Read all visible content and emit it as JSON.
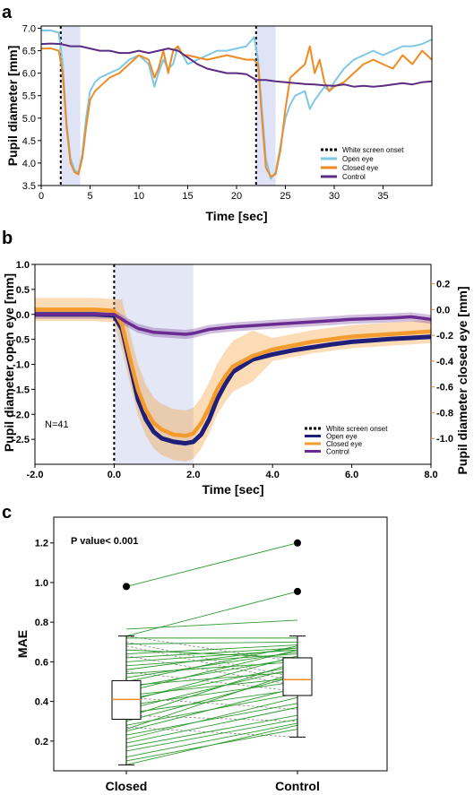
{
  "chart_data": [
    {
      "panel": "a",
      "type": "line",
      "xlabel": "Time [sec]",
      "ylabel": "Pupil diameter [mm]",
      "xlim": [
        0,
        40
      ],
      "ylim": [
        3.5,
        7.05
      ],
      "xticks": [
        0,
        5,
        10,
        15,
        20,
        25,
        30,
        35
      ],
      "yticks": [
        3.5,
        4.0,
        4.5,
        5.0,
        5.5,
        6.0,
        6.5,
        7.0
      ],
      "shaded_spans": [
        [
          2,
          4
        ],
        [
          22,
          24
        ]
      ],
      "vlines": [
        2,
        22
      ],
      "legend": [
        "White screen onset",
        "Open eye",
        "Closed eye",
        "Control"
      ],
      "legend_position": "bottom-right",
      "series": [
        {
          "name": "Open eye",
          "color": "#7ec8e3",
          "x": [
            0,
            1,
            1.8,
            2.2,
            2.6,
            3.0,
            3.4,
            3.8,
            4.2,
            4.6,
            5.0,
            5.5,
            6,
            7,
            8,
            9,
            10,
            11,
            11.6,
            12,
            12.5,
            13,
            13.5,
            14,
            15,
            16,
            17,
            18,
            19,
            20,
            21,
            21.8,
            22.2,
            22.6,
            23,
            23.5,
            24,
            24.5,
            25,
            25.5,
            26,
            27,
            27.5,
            28,
            29,
            29.5,
            30,
            31,
            32,
            33,
            34,
            35,
            36,
            37,
            38,
            39,
            40
          ],
          "y": [
            6.95,
            6.95,
            6.9,
            6.2,
            4.9,
            4.1,
            3.85,
            3.78,
            4.2,
            5.0,
            5.6,
            5.8,
            5.9,
            6.0,
            6.1,
            6.3,
            6.4,
            6.2,
            5.7,
            6.0,
            6.3,
            6.1,
            6.2,
            6.6,
            6.2,
            6.3,
            6.4,
            6.5,
            6.5,
            6.55,
            6.6,
            6.8,
            6.3,
            5.2,
            4.1,
            3.65,
            3.8,
            4.4,
            5.0,
            5.3,
            5.5,
            5.6,
            5.2,
            5.4,
            5.7,
            5.6,
            5.8,
            6.1,
            6.3,
            6.4,
            6.5,
            6.4,
            6.5,
            6.6,
            6.6,
            6.65,
            6.75
          ]
        },
        {
          "name": "Closed eye",
          "color": "#f08a24",
          "x": [
            0,
            1,
            1.8,
            2.2,
            2.6,
            3.0,
            3.4,
            3.8,
            4.2,
            4.6,
            5.0,
            5.5,
            6,
            7,
            8,
            9,
            10,
            11,
            11.6,
            12,
            12.5,
            13,
            13.5,
            14,
            14.5,
            15,
            16,
            17,
            18,
            19,
            20,
            21,
            21.8,
            22.2,
            22.6,
            23,
            23.5,
            24,
            24.5,
            25,
            25.5,
            26,
            27,
            27.5,
            28,
            28.5,
            29,
            29.5,
            30,
            31,
            32,
            33,
            34,
            35,
            36,
            37,
            38,
            39,
            40
          ],
          "y": [
            6.55,
            6.55,
            6.5,
            6.0,
            4.8,
            4.0,
            3.8,
            3.75,
            4.1,
            4.8,
            5.4,
            5.6,
            5.7,
            5.9,
            6.0,
            6.2,
            6.4,
            6.3,
            5.9,
            6.1,
            6.5,
            6.0,
            6.5,
            6.6,
            6.4,
            6.4,
            6.35,
            6.3,
            6.35,
            6.4,
            6.35,
            6.3,
            6.3,
            6.2,
            5.0,
            3.9,
            3.7,
            3.75,
            4.3,
            5.2,
            5.9,
            6.0,
            6.2,
            6.6,
            6.0,
            6.3,
            5.8,
            5.6,
            5.7,
            5.8,
            6.0,
            6.2,
            6.3,
            6.2,
            6.1,
            6.4,
            6.2,
            6.5,
            6.3
          ]
        },
        {
          "name": "Control",
          "color": "#5b2c83",
          "x": [
            0,
            1,
            2,
            3,
            4,
            5,
            6,
            7,
            8,
            9,
            10,
            11,
            12,
            13,
            14,
            15,
            16,
            17,
            18,
            19,
            20,
            21,
            22,
            23,
            24,
            25,
            26,
            27,
            28,
            29,
            30,
            31,
            32,
            33,
            34,
            35,
            36,
            37,
            38,
            39,
            40
          ],
          "y": [
            6.65,
            6.66,
            6.65,
            6.6,
            6.6,
            6.55,
            6.5,
            6.5,
            6.45,
            6.45,
            6.5,
            6.45,
            6.5,
            6.55,
            6.5,
            6.35,
            6.2,
            6.1,
            6.05,
            6.0,
            6.0,
            5.98,
            5.85,
            5.85,
            5.82,
            5.8,
            5.78,
            5.76,
            5.75,
            5.73,
            5.72,
            5.75,
            5.7,
            5.72,
            5.7,
            5.72,
            5.75,
            5.78,
            5.75,
            5.8,
            5.82
          ]
        }
      ]
    },
    {
      "panel": "b",
      "type": "line",
      "xlabel": "Time [sec]",
      "ylabel": "Pupil diameter open eye [mm]",
      "ylabel_right": "Pupil diameter closed eye [mm]",
      "xlim": [
        -2,
        8
      ],
      "ylim": [
        -3.0,
        1.0
      ],
      "ylim_right": [
        -1.2,
        0.35
      ],
      "xticks": [
        -2.0,
        0.0,
        2.0,
        4.0,
        6.0,
        8.0
      ],
      "yticks": [
        1.0,
        0.5,
        0.0,
        -0.5,
        -1.0,
        -1.5,
        -2.0,
        -2.5
      ],
      "yticks_right": [
        0.2,
        0.0,
        -0.2,
        -0.4,
        -0.6,
        -0.8,
        -1.0
      ],
      "shaded_spans": [
        [
          0,
          2
        ]
      ],
      "vlines": [
        0
      ],
      "annotation": "N=41",
      "legend": [
        "White screen onset",
        "Open eye",
        "Closed eye",
        "Control"
      ],
      "legend_position": "bottom-right",
      "series": [
        {
          "name": "Open eye",
          "color": "#1f1f7a",
          "x": [
            -2,
            -1,
            -0.5,
            0,
            0.2,
            0.4,
            0.6,
            0.8,
            1.0,
            1.2,
            1.5,
            1.8,
            2.0,
            2.2,
            2.4,
            2.6,
            2.8,
            3.0,
            3.5,
            4.0,
            4.5,
            5.0,
            5.5,
            6.0,
            6.5,
            7.0,
            7.5,
            8.0
          ],
          "y": [
            0.0,
            0.0,
            0.0,
            -0.02,
            -0.3,
            -1.0,
            -1.7,
            -2.1,
            -2.35,
            -2.48,
            -2.55,
            -2.58,
            -2.55,
            -2.4,
            -2.1,
            -1.7,
            -1.4,
            -1.15,
            -0.9,
            -0.8,
            -0.72,
            -0.66,
            -0.6,
            -0.55,
            -0.52,
            -0.49,
            -0.47,
            -0.45
          ]
        },
        {
          "name": "Closed eye",
          "color": "#f39c2d",
          "axis": "right",
          "x": [
            -2,
            -1,
            -0.5,
            0,
            0.2,
            0.4,
            0.6,
            0.8,
            1.0,
            1.2,
            1.5,
            1.8,
            2.0,
            2.2,
            2.4,
            2.6,
            2.8,
            3.0,
            3.5,
            4.0,
            4.5,
            5.0,
            5.5,
            6.0,
            6.5,
            7.0,
            7.5,
            8.0
          ],
          "y": [
            0.0,
            0.0,
            0.0,
            -0.01,
            -0.12,
            -0.38,
            -0.62,
            -0.78,
            -0.88,
            -0.93,
            -0.97,
            -0.98,
            -0.96,
            -0.88,
            -0.76,
            -0.62,
            -0.52,
            -0.44,
            -0.36,
            -0.31,
            -0.28,
            -0.25,
            -0.23,
            -0.21,
            -0.2,
            -0.19,
            -0.18,
            -0.17
          ]
        },
        {
          "name": "Control",
          "color": "#6a2c91",
          "x": [
            -2,
            -1,
            0,
            0.3,
            0.6,
            1.0,
            1.4,
            1.8,
            2.0,
            2.4,
            3.0,
            4.0,
            5.0,
            6.0,
            7.0,
            7.5,
            8.0
          ],
          "y": [
            0.0,
            0.0,
            0.0,
            -0.15,
            -0.28,
            -0.36,
            -0.38,
            -0.4,
            -0.38,
            -0.3,
            -0.25,
            -0.2,
            -0.15,
            -0.1,
            -0.07,
            -0.05,
            -0.1
          ]
        }
      ]
    },
    {
      "panel": "c",
      "type": "boxplot",
      "ylabel": "MAE",
      "categories": [
        "Closed",
        "Control"
      ],
      "ylim": [
        0.05,
        1.33
      ],
      "yticks": [
        0.2,
        0.4,
        0.6,
        0.8,
        1.0,
        1.2
      ],
      "annotation": "P value< 0.001",
      "boxes": [
        {
          "name": "Closed",
          "q1": 0.31,
          "median": 0.41,
          "q3": 0.505,
          "whisker_low": 0.08,
          "whisker_high": 0.73,
          "outliers": [
            0.98
          ]
        },
        {
          "name": "Control",
          "q1": 0.43,
          "median": 0.51,
          "q3": 0.62,
          "whisker_low": 0.22,
          "whisker_high": 0.73,
          "outliers": [
            0.955,
            1.2
          ]
        }
      ],
      "pairs_increase": [
        [
          0.98,
          1.2
        ],
        [
          0.765,
          0.81
        ],
        [
          0.73,
          0.955
        ],
        [
          0.72,
          0.72
        ],
        [
          0.69,
          0.7
        ],
        [
          0.66,
          0.62
        ],
        [
          0.64,
          0.685
        ],
        [
          0.62,
          0.67
        ],
        [
          0.6,
          0.66
        ],
        [
          0.58,
          0.64
        ],
        [
          0.56,
          0.67
        ],
        [
          0.54,
          0.6
        ],
        [
          0.52,
          0.65
        ],
        [
          0.5,
          0.68
        ],
        [
          0.48,
          0.55
        ],
        [
          0.47,
          0.62
        ],
        [
          0.45,
          0.66
        ],
        [
          0.43,
          0.52
        ],
        [
          0.41,
          0.58
        ],
        [
          0.4,
          0.63
        ],
        [
          0.38,
          0.5
        ],
        [
          0.36,
          0.57
        ],
        [
          0.34,
          0.46
        ],
        [
          0.32,
          0.6
        ],
        [
          0.3,
          0.53
        ],
        [
          0.28,
          0.44
        ],
        [
          0.26,
          0.55
        ],
        [
          0.25,
          0.47
        ],
        [
          0.23,
          0.39
        ],
        [
          0.21,
          0.42
        ],
        [
          0.19,
          0.37
        ],
        [
          0.17,
          0.33
        ],
        [
          0.15,
          0.31
        ],
        [
          0.12,
          0.29
        ],
        [
          0.1,
          0.26
        ],
        [
          0.08,
          0.28
        ]
      ],
      "pairs_decrease": [
        [
          0.73,
          0.6
        ],
        [
          0.7,
          0.52
        ],
        [
          0.68,
          0.5
        ],
        [
          0.63,
          0.48
        ],
        [
          0.55,
          0.45
        ],
        [
          0.42,
          0.36
        ],
        [
          0.33,
          0.3
        ],
        [
          0.27,
          0.22
        ]
      ]
    }
  ]
}
